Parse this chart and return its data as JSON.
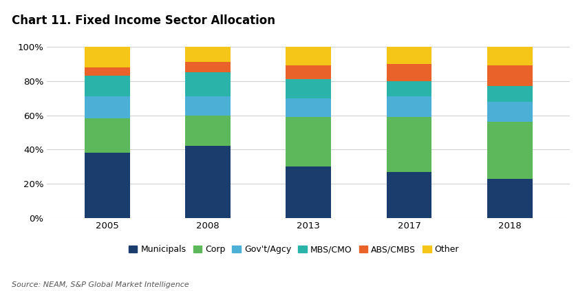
{
  "title": "Chart 11. Fixed Income Sector Allocation",
  "source": "Source: NEAM, S&P Global Market Intelligence",
  "years": [
    "2005",
    "2008",
    "2013",
    "2017",
    "2018"
  ],
  "categories": [
    "Municipals",
    "Corp",
    "Gov't/Agcy",
    "MBS/CMO",
    "ABS/CMBS",
    "Other"
  ],
  "colors": [
    "#1a3d6e",
    "#5db85c",
    "#4bafd6",
    "#2ab3a8",
    "#e8622a",
    "#f5c518"
  ],
  "data": {
    "Municipals": [
      38,
      42,
      30,
      27,
      23
    ],
    "Corp": [
      20,
      18,
      29,
      32,
      33
    ],
    "Gov't/Agcy": [
      13,
      11,
      11,
      12,
      12
    ],
    "MBS/CMO": [
      12,
      14,
      11,
      9,
      9
    ],
    "ABS/CMBS": [
      5,
      6,
      8,
      10,
      12
    ],
    "Other": [
      12,
      9,
      11,
      10,
      11
    ]
  },
  "ylim": [
    0,
    100
  ],
  "yticks": [
    0,
    20,
    40,
    60,
    80,
    100
  ],
  "ytick_labels": [
    "0%",
    "20%",
    "40%",
    "60%",
    "80%",
    "100%"
  ],
  "bar_width": 0.45,
  "figure_width": 8.54,
  "figure_height": 4.23,
  "dpi": 100,
  "background_color": "#ffffff",
  "grid_color": "#d0d0d0",
  "title_fontsize": 12,
  "tick_fontsize": 9.5,
  "legend_fontsize": 9,
  "source_fontsize": 8
}
